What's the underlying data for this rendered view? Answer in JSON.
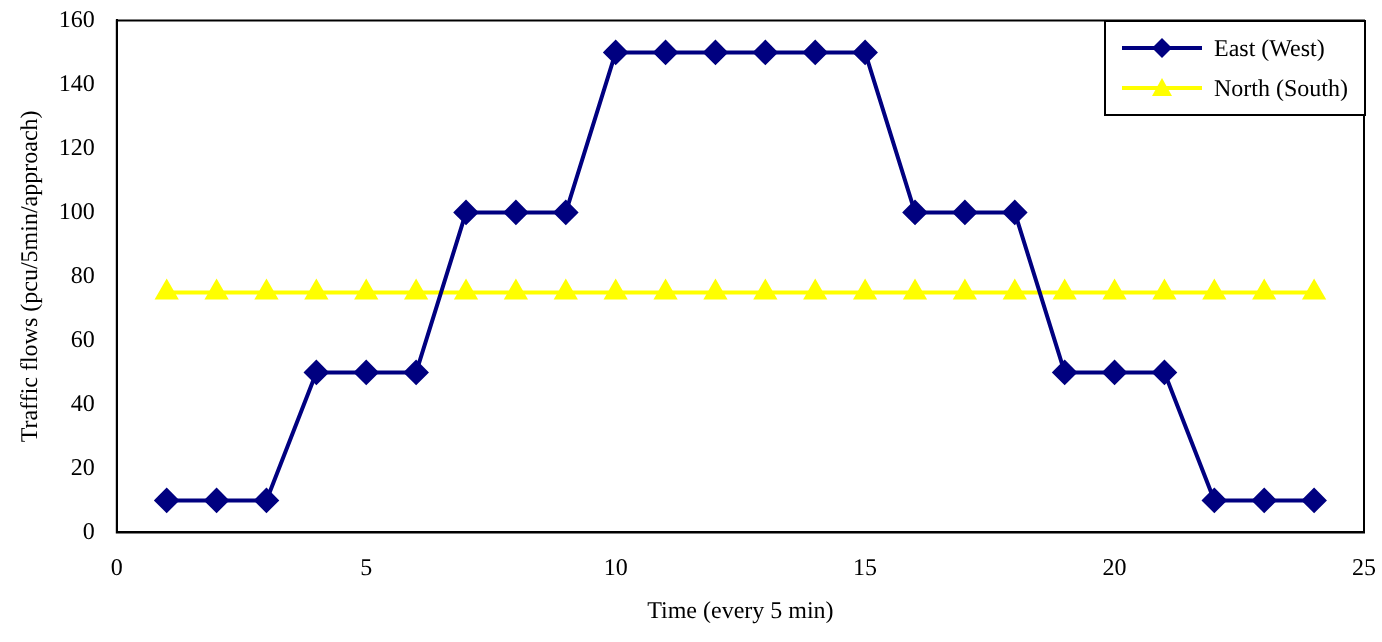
{
  "chart_data": {
    "type": "line",
    "xlabel": "Time (every 5 min)",
    "ylabel": "Traffic flows (pcu/5min/approach)",
    "x": [
      1,
      2,
      3,
      4,
      5,
      6,
      7,
      8,
      9,
      10,
      11,
      12,
      13,
      14,
      15,
      16,
      17,
      18,
      19,
      20,
      21,
      22,
      23,
      24
    ],
    "series": [
      {
        "name": "East (West)",
        "color": "#000080",
        "marker": "diamond",
        "values": [
          10,
          10,
          10,
          50,
          50,
          50,
          100,
          100,
          100,
          150,
          150,
          150,
          150,
          150,
          150,
          100,
          100,
          100,
          50,
          50,
          50,
          10,
          10,
          10
        ]
      },
      {
        "name": "North (South)",
        "color": "#ffff00",
        "marker": "triangle",
        "values": [
          75,
          75,
          75,
          75,
          75,
          75,
          75,
          75,
          75,
          75,
          75,
          75,
          75,
          75,
          75,
          75,
          75,
          75,
          75,
          75,
          75,
          75,
          75,
          75
        ]
      }
    ],
    "xlim": [
      0,
      25
    ],
    "xticks": [
      0,
      5,
      10,
      15,
      20,
      25
    ],
    "ylim": [
      0,
      160
    ],
    "yticks": [
      0,
      20,
      40,
      60,
      80,
      100,
      120,
      140,
      160
    ],
    "grid": false,
    "legend": "top right",
    "line_style": "solid"
  }
}
